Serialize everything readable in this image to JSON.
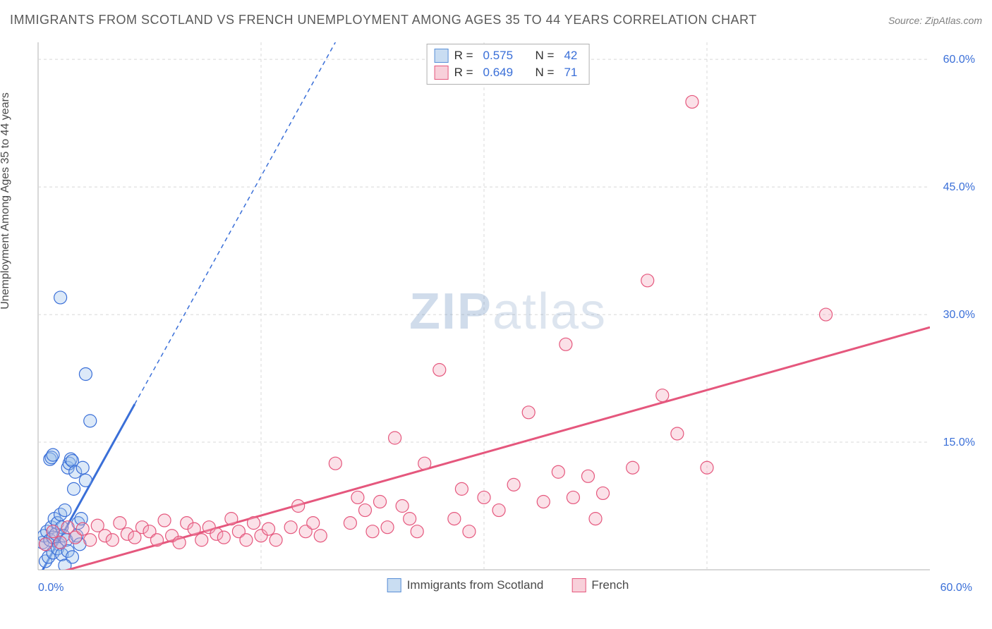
{
  "title": "IMMIGRANTS FROM SCOTLAND VS FRENCH UNEMPLOYMENT AMONG AGES 35 TO 44 YEARS CORRELATION CHART",
  "source_label": "Source: ZipAtlas.com",
  "ylabel": "Unemployment Among Ages 35 to 44 years",
  "watermark_zip": "ZIP",
  "watermark_atlas": "atlas",
  "legend_top": {
    "rows": [
      {
        "r_label": "R =",
        "r_val": "0.575",
        "n_label": "N =",
        "n_val": "42",
        "swatch_fill": "#c9ddf2",
        "swatch_stroke": "#5a8fd6"
      },
      {
        "r_label": "R =",
        "r_val": "0.649",
        "n_label": "N =",
        "n_val": "71",
        "swatch_fill": "#f8d0da",
        "swatch_stroke": "#e5577d"
      }
    ]
  },
  "legend_bottom": {
    "items": [
      {
        "label": "Immigrants from Scotland",
        "swatch_fill": "#c9ddf2",
        "swatch_stroke": "#5a8fd6"
      },
      {
        "label": "French",
        "swatch_fill": "#f8d0da",
        "swatch_stroke": "#e5577d"
      }
    ]
  },
  "chart": {
    "type": "scatter",
    "background_color": "#ffffff",
    "plot_border_color": "#b0b0b0",
    "grid_color": "#d8d8d8",
    "grid_dash": "4,4",
    "xlim": [
      0,
      60
    ],
    "ylim": [
      0,
      62
    ],
    "xtick_labels": [
      {
        "v": 0,
        "label": "0.0%"
      },
      {
        "v": 60,
        "label": "60.0%"
      }
    ],
    "ytick_labels": [
      {
        "v": 15,
        "label": "15.0%"
      },
      {
        "v": 30,
        "label": "30.0%"
      },
      {
        "v": 45,
        "label": "45.0%"
      },
      {
        "v": 60,
        "label": "60.0%"
      }
    ],
    "xgrid": [
      15,
      30,
      45
    ],
    "ygrid": [
      15,
      30,
      45,
      60
    ],
    "marker_radius": 9,
    "marker_fill_opacity": 0.35,
    "series": [
      {
        "name": "scotland",
        "color": "#3a6fd8",
        "fill": "#9cc0ea",
        "trend": {
          "x1": 0,
          "y1": -1,
          "x2": 20,
          "y2": 62,
          "solid_until_x": 6.5
        },
        "points": [
          [
            0.3,
            3.2
          ],
          [
            0.4,
            4.0
          ],
          [
            0.5,
            3.0
          ],
          [
            0.6,
            4.5
          ],
          [
            0.8,
            3.5
          ],
          [
            0.9,
            5.0
          ],
          [
            1.0,
            3.8
          ],
          [
            1.1,
            6.0
          ],
          [
            1.2,
            4.2
          ],
          [
            1.3,
            5.5
          ],
          [
            1.4,
            3.0
          ],
          [
            1.5,
            6.5
          ],
          [
            1.6,
            5.0
          ],
          [
            1.7,
            4.0
          ],
          [
            1.8,
            7.0
          ],
          [
            1.9,
            3.5
          ],
          [
            2.0,
            12.0
          ],
          [
            2.1,
            12.5
          ],
          [
            2.2,
            13.0
          ],
          [
            2.3,
            12.8
          ],
          [
            2.4,
            9.5
          ],
          [
            2.5,
            11.5
          ],
          [
            2.6,
            4.0
          ],
          [
            2.7,
            5.5
          ],
          [
            2.8,
            3.0
          ],
          [
            2.9,
            6.0
          ],
          [
            3.0,
            12.0
          ],
          [
            3.2,
            10.5
          ],
          [
            3.5,
            17.5
          ],
          [
            0.8,
            13.0
          ],
          [
            0.9,
            13.2
          ],
          [
            1.0,
            13.5
          ],
          [
            1.5,
            32.0
          ],
          [
            3.2,
            23.0
          ],
          [
            0.5,
            1.0
          ],
          [
            0.7,
            1.5
          ],
          [
            1.0,
            2.0
          ],
          [
            1.3,
            2.5
          ],
          [
            1.6,
            1.8
          ],
          [
            2.0,
            2.2
          ],
          [
            2.3,
            1.5
          ],
          [
            1.8,
            0.5
          ]
        ]
      },
      {
        "name": "french",
        "color": "#e5577d",
        "fill": "#f3a8bc",
        "trend": {
          "x1": 0,
          "y1": -1,
          "x2": 60,
          "y2": 28.5,
          "solid_until_x": 60
        },
        "points": [
          [
            0.5,
            3.0
          ],
          [
            1.0,
            4.5
          ],
          [
            1.5,
            3.2
          ],
          [
            2.0,
            5.0
          ],
          [
            2.5,
            3.8
          ],
          [
            3.0,
            4.8
          ],
          [
            3.5,
            3.5
          ],
          [
            4.0,
            5.2
          ],
          [
            4.5,
            4.0
          ],
          [
            5.0,
            3.5
          ],
          [
            5.5,
            5.5
          ],
          [
            6.0,
            4.2
          ],
          [
            6.5,
            3.8
          ],
          [
            7.0,
            5.0
          ],
          [
            7.5,
            4.5
          ],
          [
            8.0,
            3.5
          ],
          [
            8.5,
            5.8
          ],
          [
            9.0,
            4.0
          ],
          [
            9.5,
            3.2
          ],
          [
            10.0,
            5.5
          ],
          [
            10.5,
            4.8
          ],
          [
            11.0,
            3.5
          ],
          [
            11.5,
            5.0
          ],
          [
            12.0,
            4.2
          ],
          [
            12.5,
            3.8
          ],
          [
            13.0,
            6.0
          ],
          [
            13.5,
            4.5
          ],
          [
            14.0,
            3.5
          ],
          [
            14.5,
            5.5
          ],
          [
            15.0,
            4.0
          ],
          [
            15.5,
            4.8
          ],
          [
            16.0,
            3.5
          ],
          [
            17.0,
            5.0
          ],
          [
            17.5,
            7.5
          ],
          [
            18.0,
            4.5
          ],
          [
            18.5,
            5.5
          ],
          [
            19.0,
            4.0
          ],
          [
            20.0,
            12.5
          ],
          [
            21.0,
            5.5
          ],
          [
            21.5,
            8.5
          ],
          [
            22.0,
            7.0
          ],
          [
            22.5,
            4.5
          ],
          [
            23.0,
            8.0
          ],
          [
            23.5,
            5.0
          ],
          [
            24.0,
            15.5
          ],
          [
            24.5,
            7.5
          ],
          [
            25.0,
            6.0
          ],
          [
            25.5,
            4.5
          ],
          [
            26.0,
            12.5
          ],
          [
            27.0,
            23.5
          ],
          [
            28.0,
            6.0
          ],
          [
            28.5,
            9.5
          ],
          [
            29.0,
            4.5
          ],
          [
            30.0,
            8.5
          ],
          [
            31.0,
            7.0
          ],
          [
            32.0,
            10.0
          ],
          [
            33.0,
            18.5
          ],
          [
            34.0,
            8.0
          ],
          [
            35.0,
            11.5
          ],
          [
            35.5,
            26.5
          ],
          [
            36.0,
            8.5
          ],
          [
            37.0,
            11.0
          ],
          [
            38.0,
            9.0
          ],
          [
            40.0,
            12.0
          ],
          [
            41.0,
            34.0
          ],
          [
            42.0,
            20.5
          ],
          [
            43.0,
            16.0
          ],
          [
            44.0,
            55.0
          ],
          [
            45.0,
            12.0
          ],
          [
            53.0,
            30.0
          ],
          [
            37.5,
            6.0
          ]
        ]
      }
    ]
  }
}
